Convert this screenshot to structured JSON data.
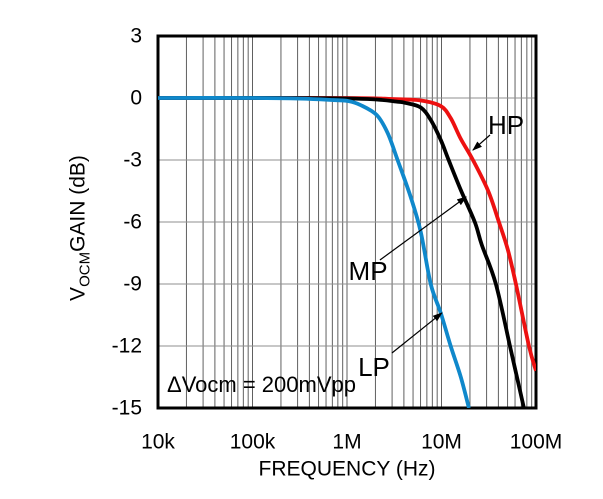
{
  "chart_data": {
    "type": "line",
    "x_scale": "log",
    "xlabel": "FREQUENCY (Hz)",
    "ylabel_parts": {
      "prefix": "V",
      "subscript": "OCM",
      "suffix": "GAIN (dB)"
    },
    "xlim": [
      10000,
      100000000
    ],
    "ylim": [
      -15,
      3
    ],
    "grid": {
      "vertical_minor": true,
      "vertical_color": "#606060",
      "horizontal_color": "#8f8f8f"
    },
    "frame_color": "#000000",
    "x_ticks": [
      {
        "value": 10000,
        "label": "10k"
      },
      {
        "value": 100000,
        "label": "100k"
      },
      {
        "value": 1000000,
        "label": "1M"
      },
      {
        "value": 10000000,
        "label": "10M"
      },
      {
        "value": 100000000,
        "label": "100M"
      }
    ],
    "y_ticks": [
      {
        "value": 3,
        "label": "3"
      },
      {
        "value": 0,
        "label": "0"
      },
      {
        "value": -3,
        "label": "-3"
      },
      {
        "value": -6,
        "label": "-6"
      },
      {
        "value": -9,
        "label": "-9"
      },
      {
        "value": -12,
        "label": "-12"
      },
      {
        "value": -15,
        "label": "-15"
      }
    ],
    "annotation": {
      "text": "ΔVocm = 200mVpp",
      "f": 12800,
      "db": -13.9
    },
    "series": [
      {
        "name": "HP",
        "color": "#ed1111",
        "label": {
          "f": 48200000,
          "db": -1.31
        },
        "arrow": {
          "from": [
            32600000,
            -1.79
          ],
          "to": [
            21500000,
            -2.52
          ]
        },
        "points": [
          [
            10000,
            0
          ],
          [
            1000000,
            0
          ],
          [
            3000000,
            -0.05
          ],
          [
            6030000,
            -0.12
          ],
          [
            9820000,
            -0.39
          ],
          [
            12500000,
            -0.97
          ],
          [
            16000000,
            -1.98
          ],
          [
            21500000,
            -3.0
          ],
          [
            31200000,
            -4.5
          ],
          [
            40500000,
            -6.0
          ],
          [
            50400000,
            -7.35
          ],
          [
            61300000,
            -9.0
          ],
          [
            84200000,
            -12.0
          ],
          [
            100000000,
            -13.2
          ]
        ]
      },
      {
        "name": "MP",
        "color": "#000000",
        "label": {
          "f": 1670000,
          "db": -8.37
        },
        "arrow": {
          "from": [
            2230000,
            -7.84
          ],
          "to": [
            18200000,
            -4.79
          ]
        },
        "points": [
          [
            10000,
            0
          ],
          [
            300000,
            0
          ],
          [
            1650000,
            -0.05
          ],
          [
            3430000,
            -0.18
          ],
          [
            4170000,
            -0.24
          ],
          [
            6030000,
            -0.46
          ],
          [
            7690000,
            -1.06
          ],
          [
            9820000,
            -2.03
          ],
          [
            11900000,
            -3.0
          ],
          [
            16000000,
            -4.45
          ],
          [
            22500000,
            -6.0
          ],
          [
            26700000,
            -7.11
          ],
          [
            37600000,
            -9.0
          ],
          [
            54200000,
            -12.2
          ],
          [
            74500000,
            -15.0
          ]
        ]
      },
      {
        "name": "LP",
        "color": "#0f88cb",
        "label": {
          "f": 1930000,
          "db": -13.02
        },
        "arrow": {
          "from": [
            2990000,
            -12.34
          ],
          "to": [
            10100000,
            -10.4
          ]
        },
        "points": [
          [
            10000,
            0
          ],
          [
            100000,
            0
          ],
          [
            321000,
            -0.03
          ],
          [
            719000,
            -0.1
          ],
          [
            1040000,
            -0.15
          ],
          [
            1390000,
            -0.34
          ],
          [
            2060000,
            -0.82
          ],
          [
            2690000,
            -1.69
          ],
          [
            3430000,
            -3.0
          ],
          [
            4720000,
            -4.79
          ],
          [
            6030000,
            -6.48
          ],
          [
            7690000,
            -9.0
          ],
          [
            9820000,
            -10.4
          ],
          [
            12500000,
            -12.0
          ],
          [
            16000000,
            -13.5
          ],
          [
            19500000,
            -15.0
          ]
        ]
      }
    ]
  }
}
